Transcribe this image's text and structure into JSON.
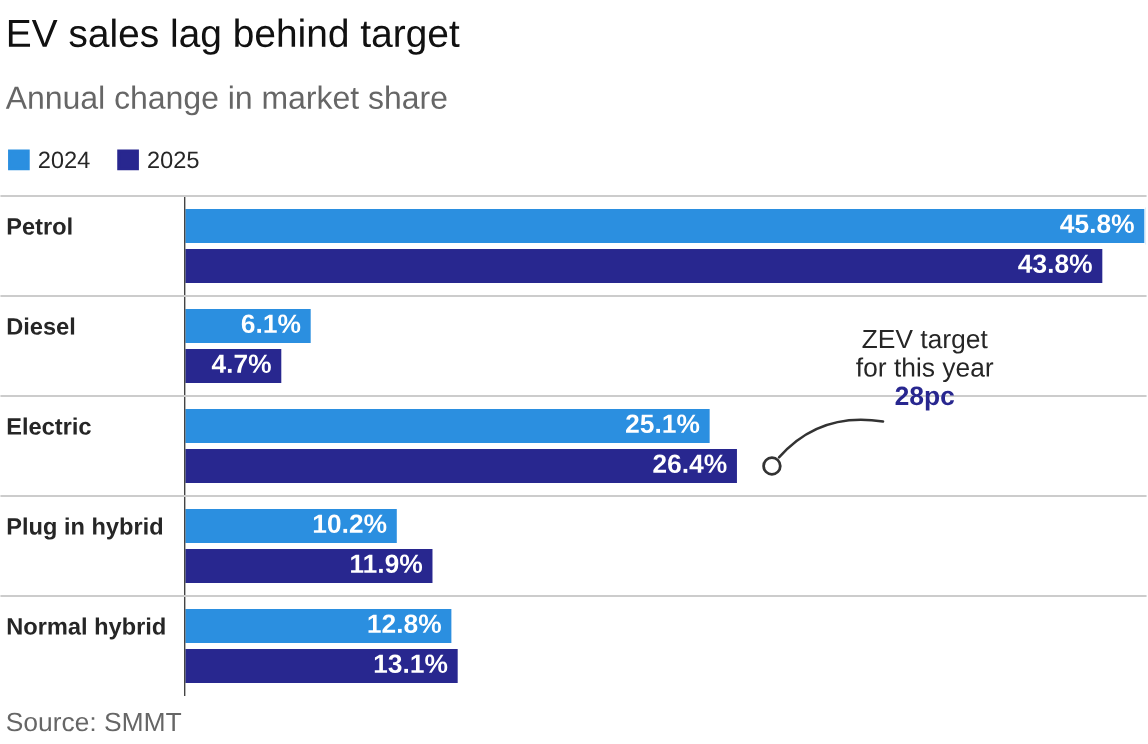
{
  "chart_data": {
    "type": "bar",
    "orientation": "horizontal",
    "title": "EV sales lag behind target",
    "subtitle": "Annual change in market share",
    "categories": [
      "Petrol",
      "Diesel",
      "Electric",
      "Plug in hybrid",
      "Normal hybrid"
    ],
    "series": [
      {
        "name": "2024",
        "color": "#2b8fe0",
        "values": [
          45.8,
          6.1,
          25.1,
          10.2,
          12.8
        ],
        "value_labels": [
          "45.8%",
          "6.1%",
          "25.1%",
          "10.2%",
          "12.8%"
        ]
      },
      {
        "name": "2025",
        "color": "#28278f",
        "values": [
          43.8,
          4.7,
          26.4,
          11.9,
          13.1
        ],
        "value_labels": [
          "43.8%",
          "4.7%",
          "26.4%",
          "11.9%",
          "13.1%"
        ]
      }
    ],
    "legend": "top left",
    "annotations": [
      {
        "text": "ZEV target\nfor this year\n28pc",
        "x": 28,
        "y": "Electric"
      },
      "Source: SMMT"
    ]
  }
}
